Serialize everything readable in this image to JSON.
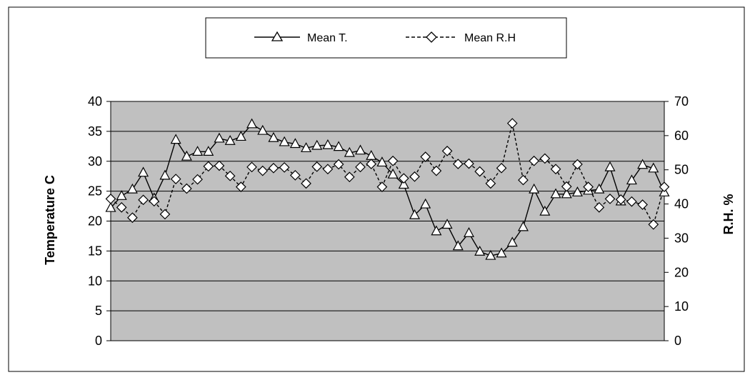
{
  "chart_data": {
    "type": "line",
    "ylabel_left": "Temperature C",
    "ylabel_right": "R.H. %",
    "ylim_left": [
      0,
      40
    ],
    "ylim_right": [
      0,
      70
    ],
    "yticks_left": [
      "0",
      "5",
      "10",
      "15",
      "20",
      "25",
      "30",
      "35",
      "40"
    ],
    "yticks_right": [
      "0",
      "10",
      "20",
      "30",
      "40",
      "50",
      "60",
      "70"
    ],
    "grid": true,
    "plot_background": "#c0c0c0",
    "legend_position": "top",
    "series": [
      {
        "name": "Mean T.",
        "axis": "left",
        "line_style": "solid",
        "marker": "triangle",
        "values": [
          22.2,
          24.2,
          25.3,
          28.1,
          23.8,
          27.6,
          33.6,
          30.8,
          31.6,
          31.6,
          33.8,
          33.4,
          34.1,
          36.2,
          35.1,
          33.9,
          33.2,
          32.9,
          32.2,
          32.6,
          32.7,
          32.4,
          31.4,
          31.8,
          30.9,
          29.8,
          27.8,
          26.1,
          21.0,
          22.8,
          18.3,
          19.4,
          15.8,
          18.0,
          14.9,
          14.2,
          14.6,
          16.4,
          19.0,
          25.3,
          21.6,
          24.5,
          24.5,
          24.8,
          25.1,
          25.3,
          29.0,
          23.3,
          26.8,
          29.4,
          28.8,
          24.8
        ]
      },
      {
        "name": "Mean R.H",
        "axis": "right",
        "line_style": "dashed",
        "marker": "diamond",
        "values": [
          41.5,
          39.0,
          36.0,
          41.2,
          40.8,
          37.0,
          47.3,
          44.5,
          47.2,
          51.0,
          51.2,
          48.2,
          45.0,
          50.8,
          49.7,
          50.5,
          50.7,
          48.4,
          46.0,
          50.9,
          50.2,
          51.6,
          47.9,
          50.8,
          51.7,
          45.0,
          52.6,
          47.5,
          48.0,
          53.8,
          49.7,
          55.5,
          51.7,
          51.8,
          49.5,
          46.0,
          50.5,
          63.6,
          47.0,
          52.6,
          53.3,
          50.2,
          45.1,
          51.6,
          45.0,
          39.0,
          41.5,
          41.3,
          40.7,
          39.8,
          34.0,
          45.0
        ]
      }
    ]
  }
}
